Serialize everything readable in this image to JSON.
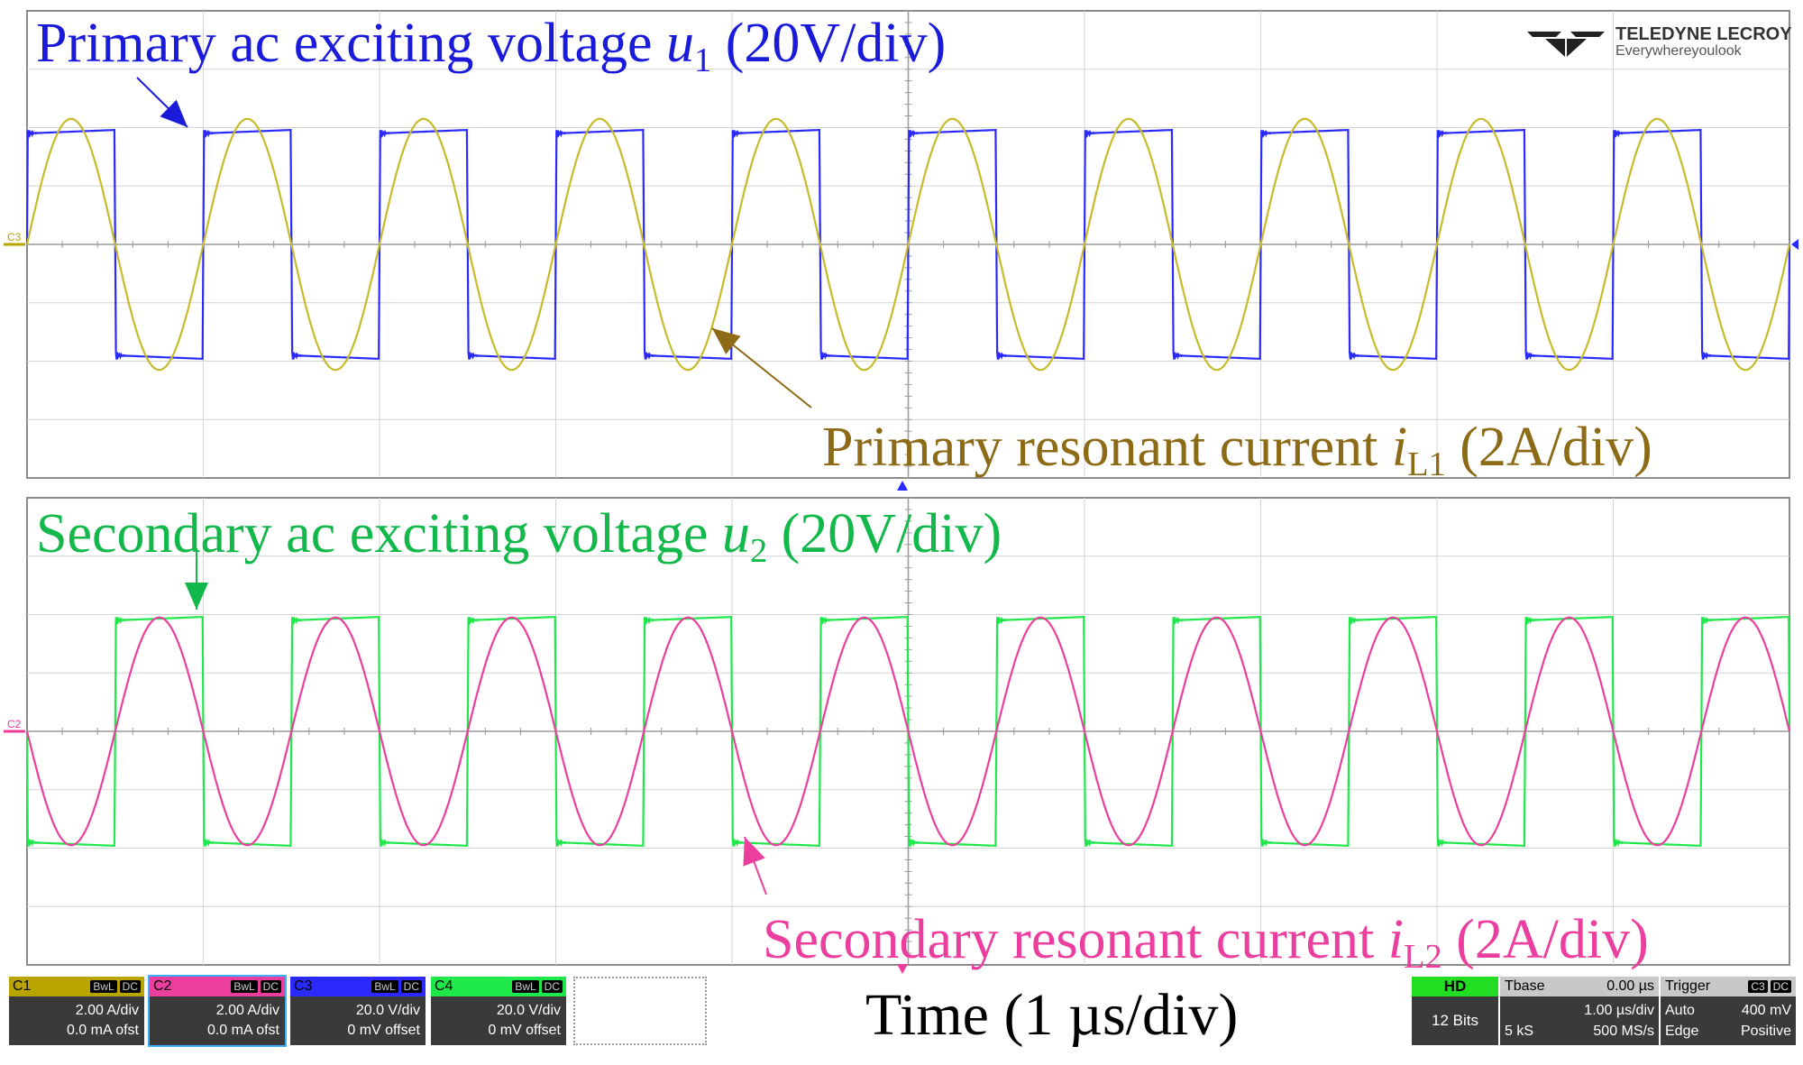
{
  "chart_data": {
    "type": "line",
    "xlabel": "Time (1 µs/div)",
    "panels": [
      {
        "series": [
          {
            "name": "Primary ac exciting voltage u1 (20V/div)",
            "waveform": "square",
            "amplitude_div": 1.95,
            "period_us": 1.0,
            "phase_us": 0.0,
            "color": "#2a2aff"
          },
          {
            "name": "Primary resonant current iL1 (2A/div)",
            "waveform": "sine",
            "amplitude_div": 2.15,
            "period_us": 1.0,
            "phase_us": 0.0,
            "color": "#c8bb2a"
          }
        ]
      },
      {
        "series": [
          {
            "name": "Secondary ac exciting voltage u2 (20V/div)",
            "waveform": "square",
            "amplitude_div": 1.95,
            "period_us": 1.0,
            "phase_us": 0.5,
            "color": "#1fe84a"
          },
          {
            "name": "Secondary resonant current iL2 (2A/div)",
            "waveform": "sine",
            "amplitude_div": 1.95,
            "period_us": 1.0,
            "phase_us": 0.5,
            "color": "#ec3e9e"
          }
        ]
      }
    ],
    "grid": true,
    "divisions": {
      "x": 10,
      "y": 8
    }
  },
  "annotations": {
    "u1": {
      "pre": "Primary ac exciting voltage ",
      "sym": "u",
      "sub": "1",
      "post": " (20V/div)",
      "color": "#1a1adb"
    },
    "iL1": {
      "pre": "Primary resonant current ",
      "sym": "i",
      "sub": "L1",
      "post": " (2A/div)",
      "color": "#8c6a16"
    },
    "u2": {
      "pre": "Secondary ac exciting voltage ",
      "sym": "u",
      "sub": "2",
      "post": " (20V/div)",
      "color": "#12b84a"
    },
    "iL2": {
      "pre": "Secondary resonant current ",
      "sym": "i",
      "sub": "L2",
      "post": " (2A/div)",
      "color": "#ec3e9e"
    }
  },
  "channel_markers": {
    "c3": "C3",
    "c2": "C2"
  },
  "logo": {
    "brand": "TELEDYNE LECROY",
    "tagline": "Everywhereyoulook"
  },
  "time_label": "Time (1 µs/div)",
  "channels": [
    {
      "label": "C1",
      "tags": [
        "BwL",
        "DC"
      ],
      "scale": "2.00 A/div",
      "offset": "0.0 mA ofst",
      "color": "#b9a400"
    },
    {
      "label": "C2",
      "tags": [
        "BwL",
        "DC"
      ],
      "scale": "2.00 A/div",
      "offset": "0.0 mA ofst",
      "color": "#ec3e9e"
    },
    {
      "label": "C3",
      "tags": [
        "BwL",
        "DC"
      ],
      "scale": "20.0 V/div",
      "offset": "0 mV offset",
      "color": "#2a2aff"
    },
    {
      "label": "C4",
      "tags": [
        "BwL",
        "DC"
      ],
      "scale": "20.0 V/div",
      "offset": "0 mV offset",
      "color": "#1fe84a"
    }
  ],
  "hd": {
    "label": "HD",
    "bits": "12 Bits"
  },
  "tbase": {
    "label": "Tbase",
    "delay": "0.00 µs",
    "samples": "5 kS",
    "per_div": "1.00 µs/div",
    "rate": "500 MS/s"
  },
  "trigger": {
    "label": "Trigger",
    "tags": [
      "C3",
      "DC"
    ],
    "mode": "Auto",
    "type": "Edge",
    "level": "400 mV",
    "slope": "Positive"
  }
}
